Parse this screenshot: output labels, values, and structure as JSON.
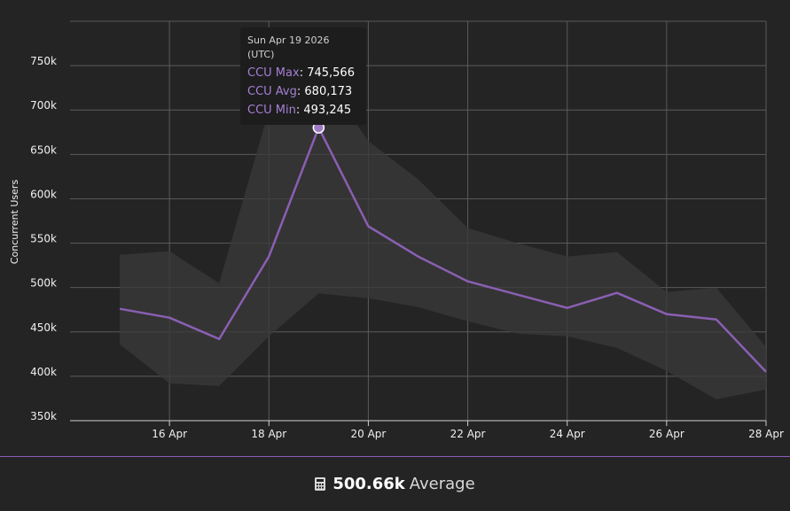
{
  "chart_data": {
    "type": "line",
    "ylabel": "Concurrent Users",
    "xlabel": "",
    "y_ticks": [
      "350k",
      "400k",
      "450k",
      "500k",
      "550k",
      "600k",
      "650k",
      "700k",
      "750k"
    ],
    "y_tick_values": [
      350000,
      400000,
      450000,
      500000,
      550000,
      600000,
      650000,
      700000,
      750000
    ],
    "x_ticks": [
      "16 Apr",
      "18 Apr",
      "20 Apr",
      "22 Apr",
      "24 Apr",
      "26 Apr",
      "28 Apr"
    ],
    "x_tick_dates": [
      "2026-04-16",
      "2026-04-18",
      "2026-04-20",
      "2026-04-22",
      "2026-04-24",
      "2026-04-26",
      "2026-04-28"
    ],
    "ylim": [
      350000,
      800000
    ],
    "xlim": [
      "2026-04-14",
      "2026-04-28"
    ],
    "grid": true,
    "x": [
      "2026-04-15",
      "2026-04-16",
      "2026-04-17",
      "2026-04-18",
      "2026-04-19",
      "2026-04-20",
      "2026-04-21",
      "2026-04-22",
      "2026-04-23",
      "2026-04-24",
      "2026-04-25",
      "2026-04-26",
      "2026-04-27",
      "2026-04-28"
    ],
    "series": [
      {
        "name": "CCU Max",
        "values": [
          537000,
          541000,
          505000,
          700000,
          745566,
          665000,
          622000,
          567000,
          550000,
          535000,
          540000,
          495000,
          500000,
          433000
        ]
      },
      {
        "name": "CCU Avg",
        "values": [
          476000,
          466000,
          442000,
          535000,
          680173,
          569000,
          535000,
          507000,
          492000,
          477000,
          494000,
          470000,
          464000,
          405000
        ]
      },
      {
        "name": "CCU Min",
        "values": [
          436000,
          392000,
          389000,
          445000,
          493245,
          488000,
          478000,
          462000,
          448000,
          445000,
          432000,
          406000,
          374000,
          385000
        ]
      }
    ],
    "highlight_index": 4,
    "colors": {
      "line": "#8a5fb3",
      "band": "#3a3a3a",
      "grid": "#5a5a5a",
      "axis": "#cfcfcf",
      "marker_fill": "#9d7cc4"
    }
  },
  "tooltip": {
    "title": "Sun Apr 19 2026 (UTC)",
    "rows": [
      {
        "label": "CCU Max",
        "sep": ": ",
        "value": "745,566"
      },
      {
        "label": "CCU Avg",
        "sep": ": ",
        "value": "680,173"
      },
      {
        "label": "CCU Min",
        "sep": ": ",
        "value": "493,245"
      }
    ]
  },
  "footer": {
    "icon": "calculator-icon",
    "value": "500.66k",
    "label": "Average"
  }
}
